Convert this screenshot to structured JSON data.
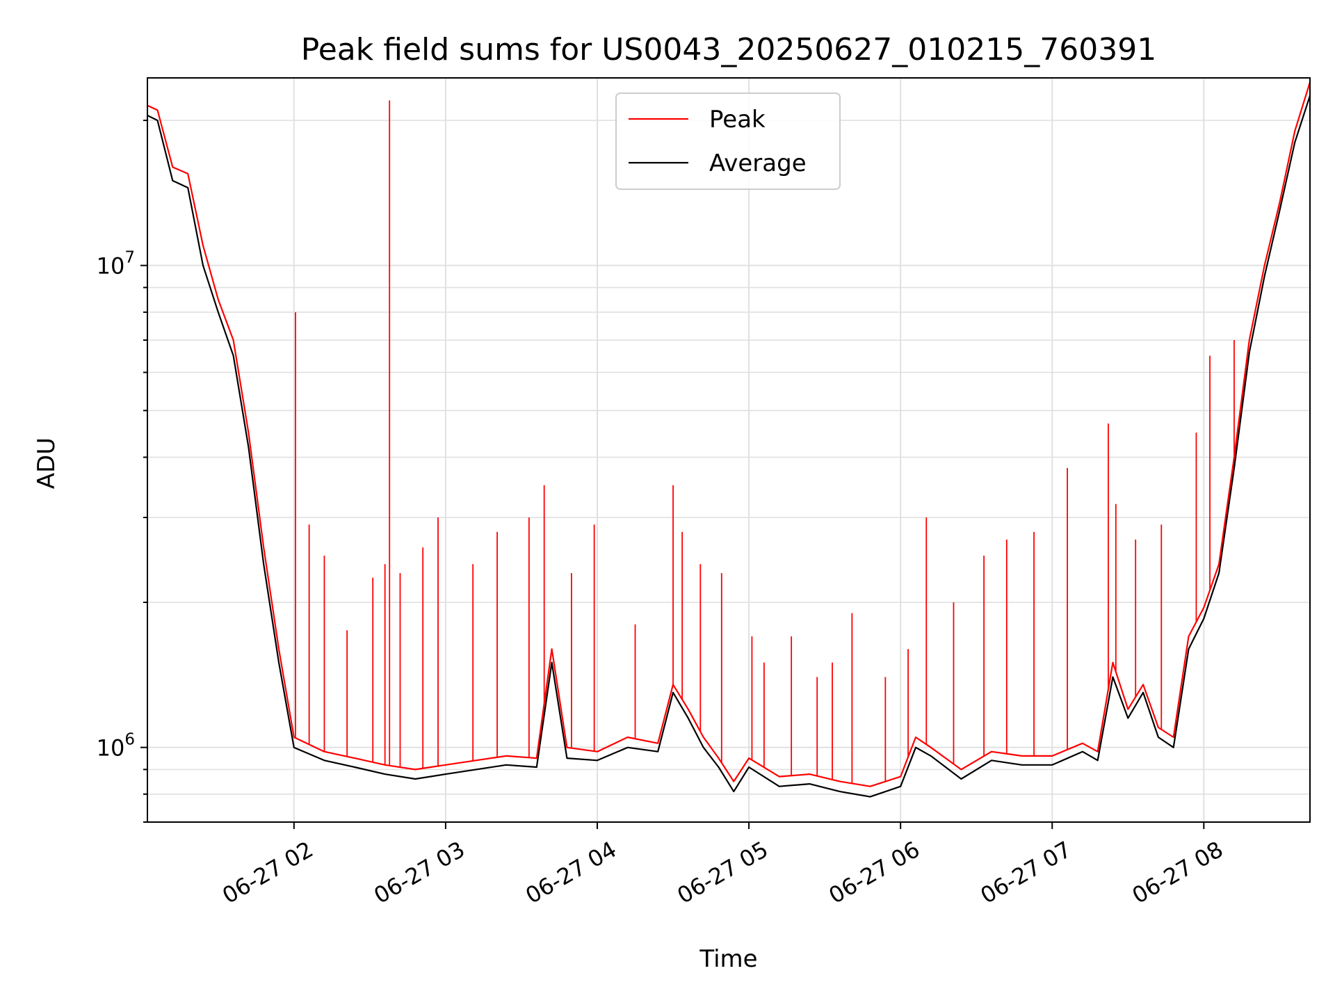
{
  "chart_data": {
    "type": "line",
    "title": "Peak field sums for US0043_20250627_010215_760391",
    "xlabel": "Time",
    "ylabel": "ADU",
    "yscale": "log",
    "xlim": [
      "06-27 01:02",
      "06-27 08:42"
    ],
    "ylim": [
      700000,
      24500000
    ],
    "grid": true,
    "legend_position": "top-center",
    "x_ticks": [
      "06-27 02",
      "06-27 03",
      "06-27 04",
      "06-27 05",
      "06-27 06",
      "06-27 07",
      "06-27 08"
    ],
    "y_ticks": [
      {
        "base": "10",
        "exp": "6",
        "value": 1000000
      },
      {
        "base": "10",
        "exp": "7",
        "value": 10000000
      }
    ],
    "series": [
      {
        "name": "Peak",
        "color": "#ff0000",
        "x_hours": [
          1.03,
          1.1,
          1.2,
          1.3,
          1.4,
          1.5,
          1.6,
          1.7,
          1.8,
          1.9,
          2.0,
          2.2,
          2.4,
          2.6,
          2.8,
          3.0,
          3.2,
          3.4,
          3.6,
          3.7,
          3.8,
          4.0,
          4.2,
          4.4,
          4.5,
          4.6,
          4.7,
          4.8,
          4.9,
          5.0,
          5.2,
          5.4,
          5.6,
          5.8,
          6.0,
          6.1,
          6.2,
          6.4,
          6.6,
          6.8,
          7.0,
          7.2,
          7.3,
          7.4,
          7.5,
          7.6,
          7.7,
          7.8,
          7.9,
          8.0,
          8.1,
          8.2,
          8.3,
          8.4,
          8.5,
          8.6,
          8.7
        ],
        "y_values": [
          21500000,
          21000000,
          16000000,
          15500000,
          11000000,
          8500000,
          7000000,
          4500000,
          2600000,
          1600000,
          1050000,
          980000,
          950000,
          920000,
          900000,
          920000,
          940000,
          960000,
          950000,
          1600000,
          1000000,
          980000,
          1050000,
          1020000,
          1350000,
          1200000,
          1050000,
          950000,
          850000,
          950000,
          870000,
          880000,
          850000,
          830000,
          870000,
          1050000,
          1000000,
          900000,
          980000,
          960000,
          960000,
          1020000,
          980000,
          1500000,
          1200000,
          1350000,
          1100000,
          1050000,
          1700000,
          1950000,
          2400000,
          4000000,
          7000000,
          10000000,
          13500000,
          19000000,
          24000000
        ]
      },
      {
        "name": "Average",
        "color": "#000000",
        "x_hours": [
          1.03,
          1.1,
          1.2,
          1.3,
          1.4,
          1.5,
          1.6,
          1.7,
          1.8,
          1.9,
          2.0,
          2.2,
          2.4,
          2.6,
          2.8,
          3.0,
          3.2,
          3.4,
          3.6,
          3.7,
          3.8,
          4.0,
          4.2,
          4.4,
          4.5,
          4.6,
          4.7,
          4.8,
          4.9,
          5.0,
          5.2,
          5.4,
          5.6,
          5.8,
          6.0,
          6.1,
          6.2,
          6.4,
          6.6,
          6.8,
          7.0,
          7.2,
          7.3,
          7.4,
          7.5,
          7.6,
          7.7,
          7.8,
          7.9,
          8.0,
          8.1,
          8.2,
          8.3,
          8.4,
          8.5,
          8.6,
          8.7
        ],
        "y_values": [
          20500000,
          20000000,
          15000000,
          14500000,
          10000000,
          8000000,
          6500000,
          4200000,
          2400000,
          1500000,
          1000000,
          940000,
          910000,
          880000,
          860000,
          880000,
          900000,
          920000,
          910000,
          1500000,
          950000,
          940000,
          1000000,
          980000,
          1300000,
          1150000,
          1000000,
          910000,
          810000,
          910000,
          830000,
          840000,
          810000,
          790000,
          830000,
          1000000,
          960000,
          860000,
          940000,
          920000,
          920000,
          980000,
          940000,
          1400000,
          1150000,
          1300000,
          1050000,
          1000000,
          1600000,
          1850000,
          2300000,
          3800000,
          6600000,
          9500000,
          13000000,
          18000000,
          22500000
        ]
      }
    ],
    "spikes": {
      "name": "Peak",
      "x_hours": [
        2.01,
        2.1,
        2.2,
        2.35,
        2.52,
        2.6,
        2.63,
        2.7,
        2.85,
        2.95,
        3.18,
        3.34,
        3.55,
        3.65,
        3.83,
        3.98,
        4.25,
        4.5,
        4.56,
        4.68,
        4.82,
        5.02,
        5.1,
        5.28,
        5.45,
        5.55,
        5.68,
        5.9,
        6.05,
        6.17,
        6.35,
        6.55,
        6.7,
        6.88,
        7.1,
        7.37,
        7.42,
        7.55,
        7.72,
        7.95,
        8.04,
        8.2
      ],
      "y_values": [
        8000000,
        2900000,
        2500000,
        1750000,
        2250000,
        2400000,
        22000000,
        2300000,
        2600000,
        3000000,
        2400000,
        2800000,
        3000000,
        3500000,
        2300000,
        2900000,
        1800000,
        3500000,
        2800000,
        2400000,
        2300000,
        1700000,
        1500000,
        1700000,
        1400000,
        1500000,
        1900000,
        1400000,
        1600000,
        3000000,
        2000000,
        2500000,
        2700000,
        2800000,
        3800000,
        4700000,
        3200000,
        2700000,
        2900000,
        4500000,
        6500000,
        7000000
      ]
    }
  }
}
